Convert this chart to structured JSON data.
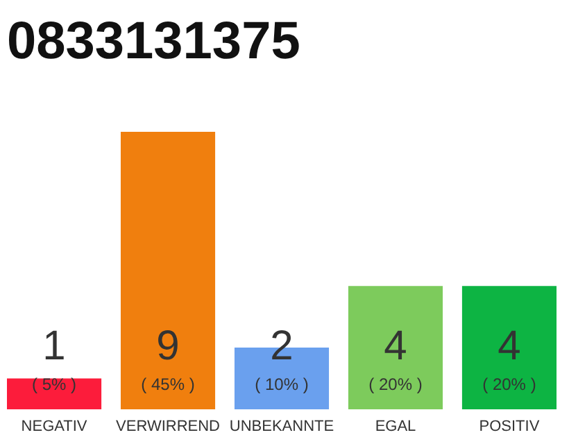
{
  "chart_data": {
    "type": "bar",
    "title": "0833131375",
    "categories": [
      "NEGATIV",
      "VERWIRREND",
      "UNBEKANNTE",
      "EGAL",
      "POSITIV"
    ],
    "values": [
      1,
      9,
      2,
      4,
      4
    ],
    "colors": [
      "#fc1c3b",
      "#f07f0e",
      "#6aa0ee",
      "#7dcb5c",
      "#0db443"
    ],
    "data_labels": true,
    "annotations": [
      "( 5% )",
      "( 45% )",
      "( 10% )",
      "( 20% )",
      "( 20% )"
    ]
  }
}
